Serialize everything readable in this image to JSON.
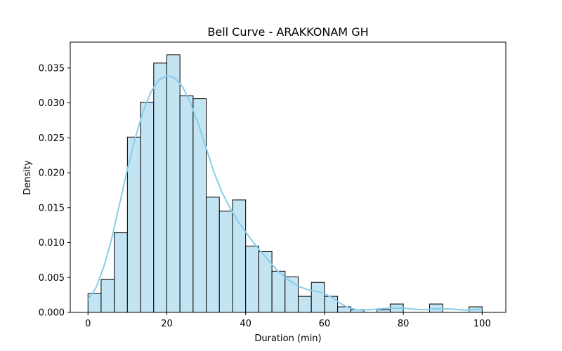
{
  "chart_data": {
    "type": "bar",
    "title": "Bell Curve - ARAKKONAM GH",
    "xlabel": "Duration (min)",
    "ylabel": "Density",
    "xlim": [
      -4.5,
      106
    ],
    "ylim": [
      0,
      0.0387
    ],
    "xticks": [
      0,
      20,
      40,
      60,
      80,
      100
    ],
    "yticks": [
      0.0,
      0.005,
      0.01,
      0.015,
      0.02,
      0.025,
      0.03,
      0.035
    ],
    "ytick_labels": [
      "0.000",
      "0.005",
      "0.010",
      "0.015",
      "0.020",
      "0.025",
      "0.030",
      "0.035"
    ],
    "bin_edges": [
      0,
      3.33,
      6.67,
      10,
      13.33,
      16.67,
      20,
      23.33,
      26.67,
      30,
      33.33,
      36.67,
      40,
      43.33,
      46.67,
      50,
      53.33,
      56.67,
      60,
      63.33,
      66.67,
      70,
      73.33,
      76.67,
      80,
      83.33,
      86.67,
      90,
      93.33,
      96.67,
      100
    ],
    "values": [
      0.0027,
      0.0047,
      0.0114,
      0.0251,
      0.0301,
      0.0357,
      0.0369,
      0.031,
      0.0306,
      0.0165,
      0.0145,
      0.0161,
      0.0095,
      0.0087,
      0.0059,
      0.0051,
      0.0023,
      0.0043,
      0.0023,
      0.0008,
      0.0004,
      0.0,
      0.0004,
      0.0012,
      0.0,
      0.0,
      0.0012,
      0.0,
      0.0,
      0.0008
    ],
    "bar_color": "#c3e4f2",
    "bar_edge_color": "#000000",
    "kde": {
      "x": [
        0,
        2,
        4,
        6,
        8,
        10,
        12,
        14,
        16,
        18,
        20,
        22,
        24,
        26,
        28,
        30,
        32,
        34,
        36,
        38,
        40,
        42,
        44,
        46,
        48,
        50,
        52,
        54,
        56,
        58,
        60,
        62,
        64,
        66,
        68,
        70,
        72,
        74,
        76,
        78,
        80,
        82,
        84,
        86,
        88,
        90,
        92,
        94,
        96,
        98,
        100
      ],
      "y": [
        0.0018,
        0.0035,
        0.0065,
        0.0105,
        0.0155,
        0.0205,
        0.025,
        0.0288,
        0.0316,
        0.0333,
        0.0339,
        0.0336,
        0.0323,
        0.03,
        0.027,
        0.0235,
        0.02,
        0.0172,
        0.015,
        0.0131,
        0.0115,
        0.01,
        0.0086,
        0.0073,
        0.006,
        0.005,
        0.0042,
        0.0036,
        0.0032,
        0.003,
        0.0027,
        0.0021,
        0.0013,
        0.0007,
        0.0004,
        0.0003,
        0.0004,
        0.0005,
        0.0006,
        0.0006,
        0.0006,
        0.0005,
        0.0004,
        0.0004,
        0.0005,
        0.0005,
        0.0005,
        0.0004,
        0.0003,
        0.0004,
        0.0005
      ],
      "color": "#87ceeb"
    }
  }
}
